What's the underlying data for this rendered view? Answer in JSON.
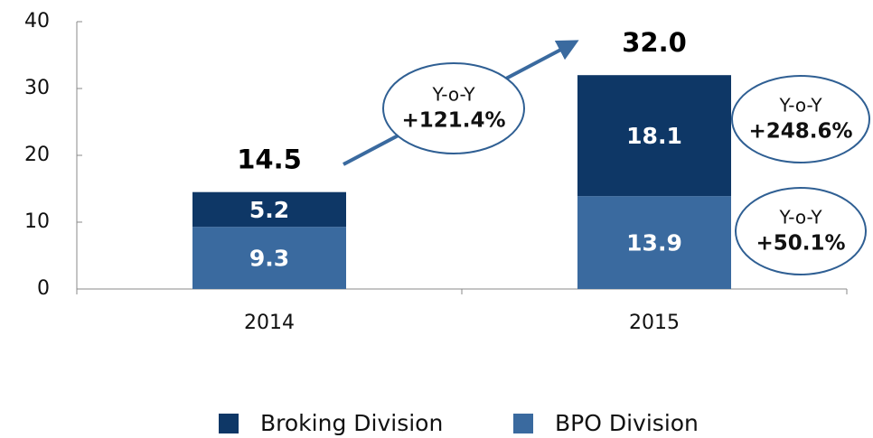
{
  "chart_data": {
    "type": "stacked_bar",
    "categories": [
      "2014",
      "2015"
    ],
    "series": [
      {
        "name": "Broking Division",
        "color": "#0e3766",
        "values": [
          5.2,
          18.1
        ]
      },
      {
        "name": "BPO Division",
        "color": "#3a6a9f",
        "values": [
          9.3,
          13.9
        ]
      }
    ],
    "totals": [
      14.5,
      32.0
    ],
    "total_labels": [
      "14.5",
      "32.0"
    ],
    "ylim": [
      0,
      40
    ],
    "yticks": [
      0,
      10,
      20,
      30,
      40
    ],
    "legend": "bottom",
    "annotations": [
      {
        "label": "Y-o-Y",
        "value": "+121.4%"
      },
      {
        "label": "Y-o-Y",
        "value": "+248.6%"
      },
      {
        "label": "Y-o-Y",
        "value": "+50.1%"
      }
    ]
  }
}
